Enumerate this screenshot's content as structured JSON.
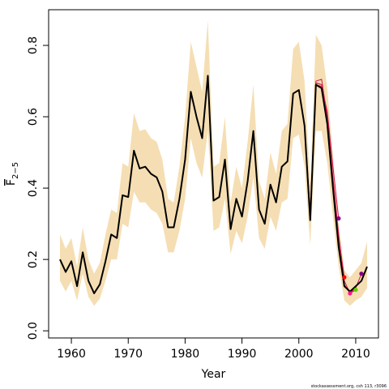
{
  "chart_data": {
    "type": "line",
    "xlabel": "Year",
    "ylabel": "F",
    "ylabel_subscript": "2−5",
    "credit": "stockassessment.org, csh 113, r3096",
    "xlim": [
      1956,
      2014
    ],
    "ylim": [
      -0.02,
      0.9
    ],
    "x_ticks": [
      1960,
      1970,
      1980,
      1990,
      2000,
      2010
    ],
    "y_ticks": [
      0.0,
      0.2,
      0.4,
      0.6,
      0.8
    ],
    "y_tick_labels": [
      "0.0",
      "0.2",
      "0.4",
      "0.6",
      "0.8"
    ],
    "colors": {
      "band": "#f5deb3",
      "estimate": "#000000",
      "retro": "#d6184e",
      "retro_end_2007": "#8b008b",
      "retro_end_2008": "#ff0000",
      "retro_end_2009": "#ff1493",
      "retro_end_2010": "#66cd00",
      "retro_end_2011": "#800080"
    },
    "years": [
      1958,
      1959,
      1960,
      1961,
      1962,
      1963,
      1964,
      1965,
      1966,
      1967,
      1968,
      1969,
      1970,
      1971,
      1972,
      1973,
      1974,
      1975,
      1976,
      1977,
      1978,
      1979,
      1980,
      1981,
      1982,
      1983,
      1984,
      1985,
      1986,
      1987,
      1988,
      1989,
      1990,
      1991,
      1992,
      1993,
      1994,
      1995,
      1996,
      1997,
      1998,
      1999,
      2000,
      2001,
      2002,
      2003,
      2004,
      2005,
      2006,
      2007,
      2008,
      2009,
      2010,
      2011,
      2012
    ],
    "estimate": [
      0.2,
      0.165,
      0.195,
      0.125,
      0.22,
      0.14,
      0.105,
      0.13,
      0.195,
      0.27,
      0.26,
      0.38,
      0.375,
      0.505,
      0.455,
      0.46,
      0.44,
      0.43,
      0.39,
      0.29,
      0.29,
      0.37,
      0.48,
      0.67,
      0.6,
      0.54,
      0.715,
      0.365,
      0.375,
      0.48,
      0.285,
      0.37,
      0.32,
      0.42,
      0.56,
      0.34,
      0.3,
      0.41,
      0.36,
      0.46,
      0.475,
      0.665,
      0.675,
      0.575,
      0.31,
      0.69,
      0.68,
      0.58,
      0.4,
      0.235,
      0.125,
      0.11,
      0.125,
      0.14,
      0.18
    ],
    "ci_upper": [
      0.27,
      0.23,
      0.26,
      0.18,
      0.29,
      0.2,
      0.16,
      0.19,
      0.27,
      0.34,
      0.33,
      0.47,
      0.46,
      0.61,
      0.56,
      0.565,
      0.54,
      0.53,
      0.48,
      0.37,
      0.36,
      0.46,
      0.6,
      0.81,
      0.74,
      0.67,
      0.87,
      0.46,
      0.47,
      0.6,
      0.36,
      0.46,
      0.4,
      0.53,
      0.69,
      0.42,
      0.37,
      0.5,
      0.44,
      0.56,
      0.58,
      0.79,
      0.81,
      0.7,
      0.41,
      0.83,
      0.8,
      0.68,
      0.49,
      0.3,
      0.17,
      0.15,
      0.17,
      0.19,
      0.25
    ],
    "ci_lower": [
      0.14,
      0.11,
      0.14,
      0.085,
      0.16,
      0.095,
      0.07,
      0.09,
      0.14,
      0.2,
      0.2,
      0.3,
      0.29,
      0.39,
      0.36,
      0.36,
      0.34,
      0.33,
      0.3,
      0.22,
      0.22,
      0.28,
      0.37,
      0.54,
      0.47,
      0.43,
      0.56,
      0.28,
      0.29,
      0.37,
      0.215,
      0.28,
      0.245,
      0.32,
      0.43,
      0.26,
      0.23,
      0.32,
      0.28,
      0.36,
      0.37,
      0.54,
      0.55,
      0.46,
      0.24,
      0.56,
      0.56,
      0.47,
      0.32,
      0.18,
      0.085,
      0.07,
      0.085,
      0.095,
      0.12
    ],
    "retrospective_runs": [
      {
        "end_year": 2011,
        "tail": [
          [
            2002,
            0.33
          ],
          [
            2003,
            0.695
          ],
          [
            2004,
            0.69
          ],
          [
            2005,
            0.585
          ],
          [
            2006,
            0.41
          ],
          [
            2007,
            0.24
          ],
          [
            2008,
            0.13
          ],
          [
            2009,
            0.105
          ],
          [
            2010,
            0.12
          ],
          [
            2011,
            0.16
          ]
        ]
      },
      {
        "end_year": 2010,
        "tail": [
          [
            2002,
            0.33
          ],
          [
            2003,
            0.695
          ],
          [
            2004,
            0.69
          ],
          [
            2005,
            0.585
          ],
          [
            2006,
            0.41
          ],
          [
            2007,
            0.24
          ],
          [
            2008,
            0.13
          ],
          [
            2009,
            0.105
          ],
          [
            2010,
            0.115
          ]
        ]
      },
      {
        "end_year": 2009,
        "tail": [
          [
            2002,
            0.32
          ],
          [
            2003,
            0.7
          ],
          [
            2004,
            0.705
          ],
          [
            2005,
            0.6
          ],
          [
            2006,
            0.43
          ],
          [
            2007,
            0.27
          ],
          [
            2008,
            0.14
          ],
          [
            2009,
            0.105
          ]
        ]
      },
      {
        "end_year": 2008,
        "tail": [
          [
            2002,
            0.32
          ],
          [
            2003,
            0.695
          ],
          [
            2004,
            0.69
          ],
          [
            2005,
            0.6
          ],
          [
            2006,
            0.42
          ],
          [
            2007,
            0.26
          ],
          [
            2008,
            0.15
          ]
        ]
      },
      {
        "end_year": 2007,
        "tail": [
          [
            2002,
            0.31
          ],
          [
            2003,
            0.69
          ],
          [
            2004,
            0.685
          ],
          [
            2005,
            0.615
          ],
          [
            2006,
            0.46
          ],
          [
            2007,
            0.315
          ]
        ]
      }
    ]
  }
}
